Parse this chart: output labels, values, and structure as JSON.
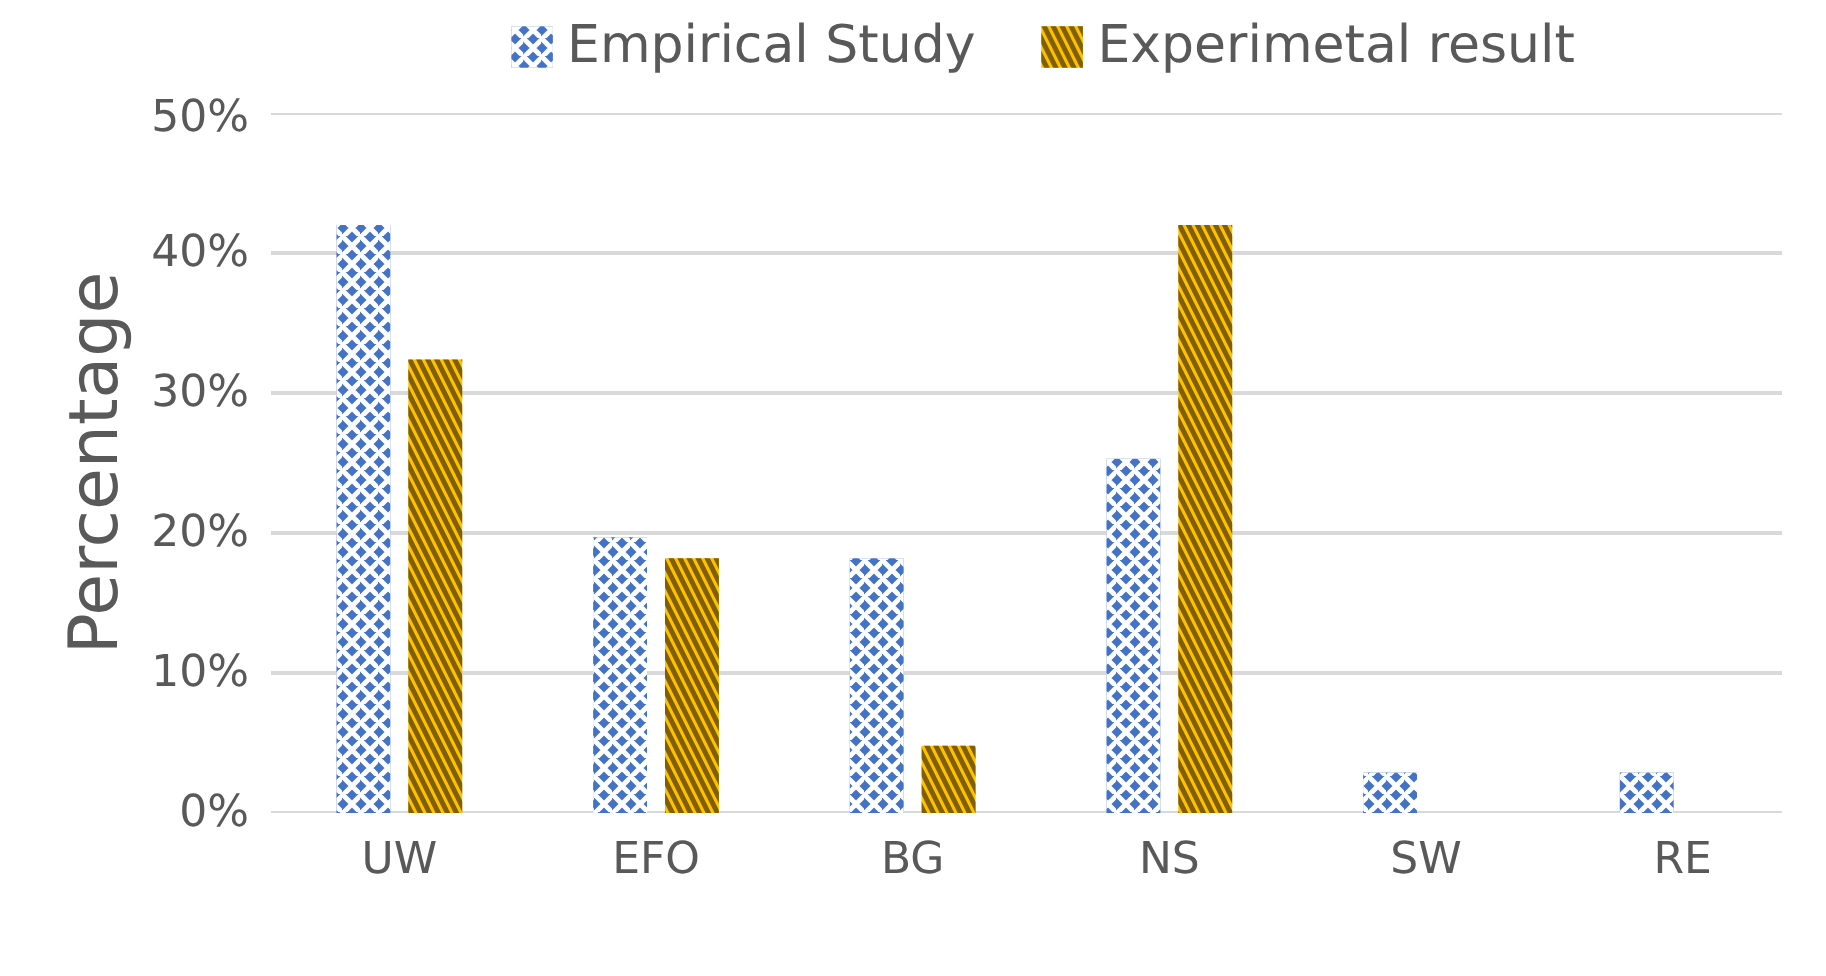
{
  "chart_data": {
    "type": "bar",
    "ylabel": "Percentage",
    "categories": [
      "UW",
      "EFO",
      "BG",
      "NS",
      "SW",
      "RE"
    ],
    "series": [
      {
        "name": "Empirical Study",
        "color": "#4472c4",
        "values": [
          42.0,
          19.7,
          18.2,
          25.3,
          2.9,
          2.9
        ]
      },
      {
        "name": "Experimetal result",
        "color": "#ffc000",
        "values": [
          32.4,
          18.2,
          4.8,
          42.0,
          0,
          0
        ]
      }
    ],
    "ylim": [
      0,
      50
    ],
    "yticks": [
      {
        "value": 0,
        "label": "0%"
      },
      {
        "value": 10,
        "label": "10%"
      },
      {
        "value": 20,
        "label": "20%"
      },
      {
        "value": 30,
        "label": "30%"
      },
      {
        "value": 40,
        "label": "40%"
      },
      {
        "value": 50,
        "label": "50%"
      }
    ],
    "grid": "y",
    "legend": "top"
  }
}
